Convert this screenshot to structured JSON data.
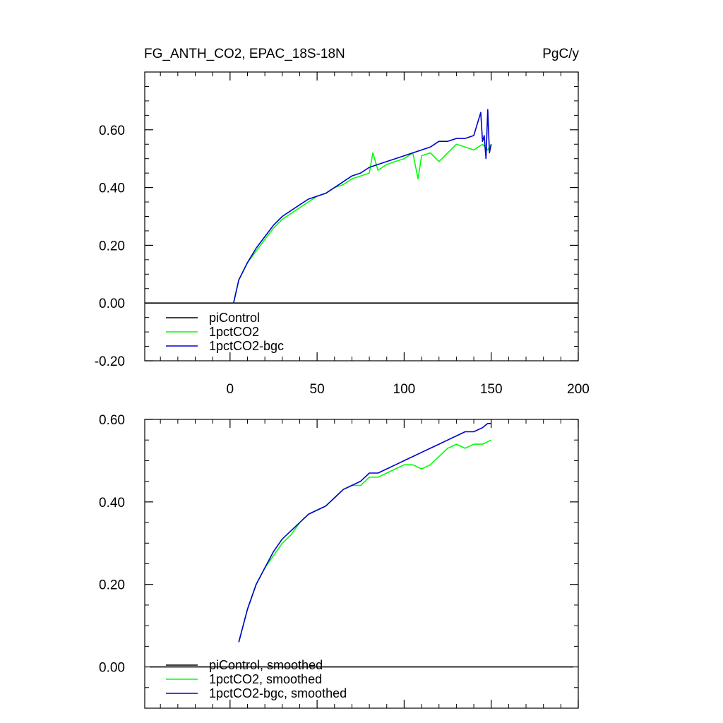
{
  "header": {
    "title": "FG_ANTH_CO2, EPAC_18S-18N",
    "units": "PgC/y"
  },
  "colors": {
    "piControl": "#000000",
    "1pctCO2": "#00ff00",
    "1pctCO2-bgc": "#0000cd"
  },
  "chart_data": [
    {
      "type": "line",
      "title": "FG_ANTH_CO2, EPAC_18S-18N",
      "units": "PgC/y",
      "xlim": [
        -49,
        200
      ],
      "ylim": [
        -0.2,
        0.8
      ],
      "x_ticks": [
        0,
        50,
        100,
        150,
        200
      ],
      "x_tick_labels": [
        "0",
        "50",
        "100",
        "150",
        "200"
      ],
      "y_ticks": [
        -0.2,
        0.0,
        0.2,
        0.4,
        0.6
      ],
      "y_tick_labels": [
        "-0.20",
        "0.00",
        "0.20",
        "0.40",
        "0.60"
      ],
      "legend_placement": "bottom-left",
      "series": [
        {
          "name": "piControl",
          "color": "#000000",
          "x": [
            -49,
            200
          ],
          "y": [
            0,
            0
          ]
        },
        {
          "name": "1pctCO2",
          "color": "#00ff00",
          "x": [
            2,
            5,
            10,
            15,
            20,
            25,
            30,
            35,
            40,
            45,
            50,
            55,
            60,
            65,
            70,
            75,
            80,
            82,
            85,
            90,
            95,
            100,
            105,
            108,
            110,
            115,
            120,
            125,
            130,
            135,
            140,
            145,
            148,
            150
          ],
          "y": [
            0.0,
            0.08,
            0.14,
            0.18,
            0.22,
            0.26,
            0.29,
            0.31,
            0.33,
            0.35,
            0.37,
            0.38,
            0.4,
            0.41,
            0.43,
            0.44,
            0.45,
            0.52,
            0.46,
            0.48,
            0.49,
            0.5,
            0.52,
            0.43,
            0.51,
            0.52,
            0.49,
            0.52,
            0.55,
            0.54,
            0.53,
            0.55,
            0.53,
            0.55
          ]
        },
        {
          "name": "1pctCO2-bgc",
          "color": "#0000cd",
          "x": [
            2,
            5,
            10,
            15,
            20,
            25,
            30,
            35,
            40,
            45,
            50,
            55,
            60,
            65,
            70,
            75,
            80,
            85,
            90,
            95,
            100,
            105,
            110,
            115,
            120,
            125,
            130,
            135,
            140,
            144,
            145,
            146,
            147,
            148,
            149,
            150
          ],
          "y": [
            0.0,
            0.08,
            0.14,
            0.19,
            0.23,
            0.27,
            0.3,
            0.32,
            0.34,
            0.36,
            0.37,
            0.38,
            0.4,
            0.42,
            0.44,
            0.45,
            0.47,
            0.48,
            0.49,
            0.5,
            0.51,
            0.52,
            0.53,
            0.54,
            0.56,
            0.56,
            0.57,
            0.57,
            0.58,
            0.66,
            0.56,
            0.58,
            0.5,
            0.67,
            0.52,
            0.55
          ]
        }
      ]
    },
    {
      "type": "line",
      "xlim": [
        -49,
        200
      ],
      "ylim": [
        -0.1,
        0.6
      ],
      "x_ticks": [
        0,
        50,
        100,
        150,
        200
      ],
      "y_ticks": [
        0.0,
        0.2,
        0.4,
        0.6
      ],
      "y_tick_labels": [
        "0.00",
        "0.20",
        "0.40",
        "0.60"
      ],
      "legend_placement": "bottom-left",
      "series": [
        {
          "name": "piControl, smoothed",
          "color": "#000000",
          "x": [
            -46,
            197
          ],
          "y": [
            0,
            0
          ]
        },
        {
          "name": "1pctCO2, smoothed",
          "color": "#00ff00",
          "x": [
            5,
            10,
            15,
            20,
            25,
            30,
            35,
            40,
            45,
            50,
            55,
            60,
            65,
            70,
            75,
            80,
            85,
            90,
            95,
            100,
            105,
            110,
            115,
            120,
            125,
            130,
            135,
            140,
            145,
            150
          ],
          "y": [
            0.06,
            0.14,
            0.2,
            0.24,
            0.27,
            0.3,
            0.32,
            0.35,
            0.37,
            0.38,
            0.39,
            0.41,
            0.43,
            0.44,
            0.44,
            0.46,
            0.46,
            0.47,
            0.48,
            0.49,
            0.49,
            0.48,
            0.49,
            0.51,
            0.53,
            0.54,
            0.53,
            0.54,
            0.54,
            0.55
          ]
        },
        {
          "name": "1pctCO2-bgc, smoothed",
          "color": "#0000cd",
          "x": [
            5,
            10,
            15,
            20,
            25,
            30,
            35,
            40,
            45,
            50,
            55,
            60,
            65,
            70,
            75,
            80,
            85,
            90,
            95,
            100,
            105,
            110,
            115,
            120,
            125,
            130,
            135,
            140,
            145,
            148,
            150
          ],
          "y": [
            0.06,
            0.14,
            0.2,
            0.24,
            0.28,
            0.31,
            0.33,
            0.35,
            0.37,
            0.38,
            0.39,
            0.41,
            0.43,
            0.44,
            0.45,
            0.47,
            0.47,
            0.48,
            0.49,
            0.5,
            0.51,
            0.52,
            0.53,
            0.54,
            0.55,
            0.56,
            0.57,
            0.57,
            0.58,
            0.59,
            0.59
          ]
        }
      ]
    }
  ]
}
